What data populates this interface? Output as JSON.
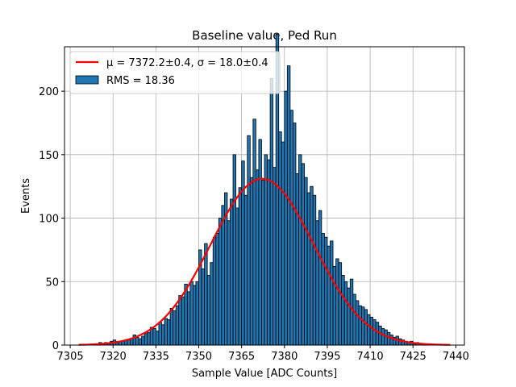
{
  "chart_data": {
    "type": "bar",
    "title": "Baseline value, Ped Run",
    "xlabel": "Sample Value [ADC Counts]",
    "ylabel": "Events",
    "xlim": [
      7303,
      7443
    ],
    "ylim": [
      0,
      235
    ],
    "xticks": [
      7305,
      7320,
      7335,
      7350,
      7365,
      7380,
      7395,
      7410,
      7425,
      7440
    ],
    "yticks": [
      0,
      50,
      100,
      150,
      200
    ],
    "grid": true,
    "legend_position": "top-left",
    "series": [
      {
        "name": "RMS = 18.36",
        "bin_start": 7315,
        "bin_width": 1,
        "values": [
          2,
          1,
          2,
          1,
          3,
          4,
          2,
          3,
          3,
          4,
          4,
          5,
          8,
          6,
          5,
          7,
          9,
          10,
          14,
          13,
          11,
          18,
          16,
          21,
          20,
          29,
          27,
          31,
          39,
          38,
          48,
          42,
          50,
          47,
          50,
          75,
          60,
          80,
          55,
          65,
          85,
          88,
          100,
          110,
          120,
          98,
          115,
          150,
          108,
          124,
          145,
          118,
          165,
          132,
          178,
          138,
          162,
          130,
          150,
          146,
          210,
          140,
          245,
          168,
          160,
          200,
          220,
          185,
          175,
          135,
          150,
          143,
          132,
          120,
          125,
          118,
          98,
          106,
          88,
          85,
          78,
          82,
          62,
          68,
          65,
          55,
          50,
          45,
          52,
          40,
          35,
          31,
          30,
          28,
          24,
          22,
          20,
          18,
          15,
          13,
          12,
          10,
          8,
          6,
          7,
          5,
          4,
          3,
          2,
          3,
          1,
          2,
          1
        ]
      }
    ],
    "fit": {
      "name": "$\\mu = 7372.2\\pm0.4$, $\\sigma = 18.0\\pm0.4$",
      "legend_label": "μ = 7372.2±0.4, σ = 18.0±0.4",
      "mu": 7372.2,
      "sigma": 18.0,
      "amplitude": 131,
      "x_range": [
        7308,
        7438
      ]
    },
    "colors": {
      "bar": "#1f77b4",
      "fit": "#ff0000"
    }
  }
}
